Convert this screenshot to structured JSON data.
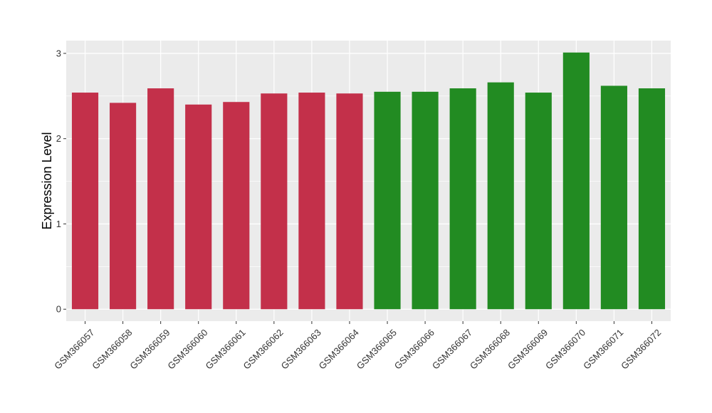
{
  "chart_data": {
    "type": "bar",
    "title": "",
    "xlabel": "",
    "ylabel": "Expression Level",
    "ylim": [
      -0.14,
      3.15
    ],
    "yticks": [
      0,
      1,
      2,
      3
    ],
    "grid": true,
    "legend": "none",
    "colors": {
      "group1": "#c3304a",
      "group2": "#228b22",
      "panel": "#ebebeb",
      "grid": "#ffffff"
    },
    "categories": [
      "GSM366057",
      "GSM366058",
      "GSM366059",
      "GSM366060",
      "GSM366061",
      "GSM366062",
      "GSM366063",
      "GSM366064",
      "GSM366065",
      "GSM366066",
      "GSM366067",
      "GSM366068",
      "GSM366069",
      "GSM366070",
      "GSM366071",
      "GSM366072"
    ],
    "values": [
      2.54,
      2.42,
      2.59,
      2.4,
      2.43,
      2.53,
      2.54,
      2.53,
      2.55,
      2.55,
      2.59,
      2.66,
      2.54,
      3.01,
      2.62,
      2.59
    ],
    "groups": [
      1,
      1,
      1,
      1,
      1,
      1,
      1,
      1,
      2,
      2,
      2,
      2,
      2,
      2,
      2,
      2
    ]
  }
}
